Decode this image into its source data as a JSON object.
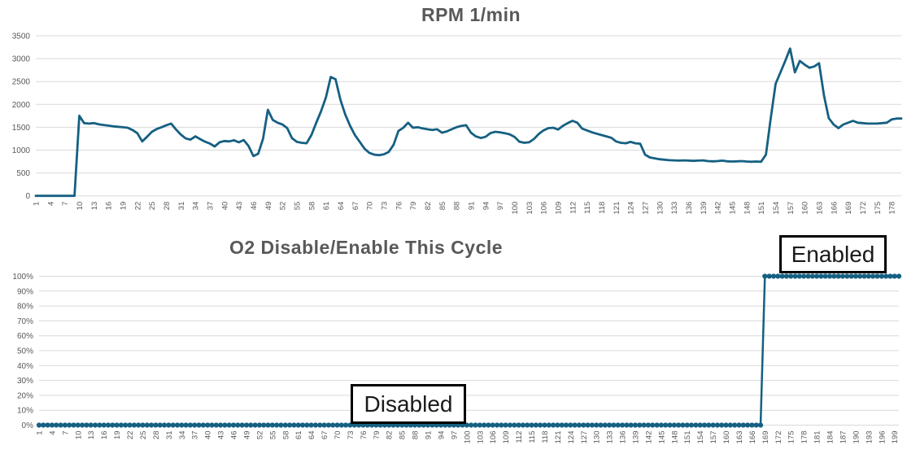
{
  "colors": {
    "series_line": "#156082",
    "gridline": "#D9D9D9",
    "axis_text": "#595959",
    "title_text": "#595959",
    "annotation_border": "#000000",
    "annotation_bg": "#FFFFFF",
    "annotation_text": "#1A1A1A"
  },
  "chart_data": [
    {
      "type": "line",
      "title": "RPM 1/min",
      "xlabel": "",
      "ylabel": "",
      "ylim": [
        0,
        3500
      ],
      "grid": true,
      "legend": "none",
      "markers": false,
      "x_start": 1,
      "x_count": 180,
      "ytick_values": [
        0,
        500,
        1000,
        1500,
        2000,
        2500,
        3000,
        3500
      ],
      "ytick_labels": [
        "0",
        "500",
        "1000",
        "1500",
        "2000",
        "2500",
        "3000",
        "3500"
      ],
      "xtick_labels": [
        "1",
        "4",
        "7",
        "10",
        "13",
        "16",
        "19",
        "22",
        "25",
        "28",
        "31",
        "34",
        "37",
        "40",
        "43",
        "46",
        "49",
        "52",
        "55",
        "58",
        "61",
        "64",
        "67",
        "70",
        "73",
        "76",
        "79",
        "82",
        "85",
        "88",
        "91",
        "94",
        "97",
        "100",
        "103",
        "106",
        "109",
        "112",
        "115",
        "118",
        "121",
        "124",
        "127",
        "130",
        "133",
        "136",
        "139",
        "142",
        "145",
        "148",
        "151",
        "154",
        "157",
        "160",
        "163",
        "166",
        "169",
        "172",
        "175",
        "178"
      ],
      "values": [
        0,
        0,
        0,
        0,
        0,
        0,
        0,
        0,
        0,
        1750,
        1590,
        1580,
        1590,
        1565,
        1550,
        1535,
        1520,
        1510,
        1500,
        1490,
        1440,
        1370,
        1190,
        1290,
        1400,
        1460,
        1500,
        1545,
        1580,
        1450,
        1340,
        1255,
        1230,
        1300,
        1240,
        1185,
        1145,
        1080,
        1170,
        1200,
        1190,
        1215,
        1170,
        1220,
        1090,
        870,
        920,
        1250,
        1880,
        1660,
        1600,
        1560,
        1480,
        1260,
        1180,
        1160,
        1150,
        1330,
        1600,
        1850,
        2150,
        2600,
        2550,
        2100,
        1780,
        1530,
        1330,
        1180,
        1030,
        940,
        900,
        890,
        910,
        960,
        1120,
        1420,
        1490,
        1600,
        1490,
        1500,
        1475,
        1455,
        1440,
        1455,
        1380,
        1410,
        1455,
        1500,
        1530,
        1545,
        1380,
        1300,
        1265,
        1290,
        1370,
        1400,
        1390,
        1370,
        1345,
        1290,
        1185,
        1160,
        1170,
        1240,
        1350,
        1430,
        1480,
        1490,
        1450,
        1530,
        1590,
        1640,
        1600,
        1470,
        1430,
        1390,
        1360,
        1330,
        1300,
        1270,
        1190,
        1160,
        1150,
        1180,
        1150,
        1140,
        900,
        840,
        820,
        800,
        790,
        780,
        775,
        770,
        775,
        770,
        765,
        770,
        775,
        760,
        755,
        760,
        770,
        755,
        750,
        755,
        760,
        750,
        745,
        750,
        745,
        900,
        1700,
        2450,
        2700,
        2950,
        3220,
        2700,
        2950,
        2870,
        2800,
        2830,
        2900,
        2200,
        1700,
        1560,
        1480,
        1560,
        1600,
        1640,
        1600,
        1590,
        1580,
        1580,
        1580,
        1590,
        1600,
        1670,
        1690,
        1690
      ]
    },
    {
      "type": "line",
      "title": "O2 Disable/Enable This Cycle",
      "xlabel": "",
      "ylabel": "",
      "ylim": [
        0,
        100
      ],
      "grid": true,
      "legend": "none",
      "markers": true,
      "x_start": 1,
      "x_count": 200,
      "ytick_values": [
        0,
        10,
        20,
        30,
        40,
        50,
        60,
        70,
        80,
        90,
        100
      ],
      "ytick_labels": [
        "0%",
        "10%",
        "20%",
        "30%",
        "40%",
        "50%",
        "60%",
        "70%",
        "80%",
        "90%",
        "100%"
      ],
      "xtick_labels": [
        "1",
        "4",
        "7",
        "10",
        "13",
        "16",
        "19",
        "22",
        "25",
        "28",
        "31",
        "34",
        "37",
        "40",
        "43",
        "46",
        "49",
        "52",
        "55",
        "58",
        "61",
        "64",
        "67",
        "70",
        "73",
        "76",
        "79",
        "82",
        "85",
        "88",
        "91",
        "94",
        "97",
        "100",
        "103",
        "106",
        "109",
        "112",
        "115",
        "118",
        "121",
        "124",
        "127",
        "130",
        "133",
        "136",
        "139",
        "142",
        "145",
        "148",
        "151",
        "154",
        "157",
        "160",
        "163",
        "166",
        "169",
        "172",
        "175",
        "178",
        "181",
        "184",
        "187",
        "190",
        "193",
        "196",
        "199"
      ],
      "values": [
        0,
        0,
        0,
        0,
        0,
        0,
        0,
        0,
        0,
        0,
        0,
        0,
        0,
        0,
        0,
        0,
        0,
        0,
        0,
        0,
        0,
        0,
        0,
        0,
        0,
        0,
        0,
        0,
        0,
        0,
        0,
        0,
        0,
        0,
        0,
        0,
        0,
        0,
        0,
        0,
        0,
        0,
        0,
        0,
        0,
        0,
        0,
        0,
        0,
        0,
        0,
        0,
        0,
        0,
        0,
        0,
        0,
        0,
        0,
        0,
        0,
        0,
        0,
        0,
        0,
        0,
        0,
        0,
        0,
        0,
        0,
        0,
        0,
        0,
        0,
        0,
        0,
        0,
        0,
        0,
        0,
        0,
        0,
        0,
        0,
        0,
        0,
        0,
        0,
        0,
        0,
        0,
        0,
        0,
        0,
        0,
        0,
        0,
        0,
        0,
        0,
        0,
        0,
        0,
        0,
        0,
        0,
        0,
        0,
        0,
        0,
        0,
        0,
        0,
        0,
        0,
        0,
        0,
        0,
        0,
        0,
        0,
        0,
        0,
        0,
        0,
        0,
        0,
        0,
        0,
        0,
        0,
        0,
        0,
        0,
        0,
        0,
        0,
        0,
        0,
        0,
        0,
        0,
        0,
        0,
        0,
        0,
        0,
        0,
        0,
        0,
        0,
        0,
        0,
        0,
        0,
        0,
        0,
        0,
        0,
        0,
        0,
        0,
        0,
        0,
        0,
        0,
        0,
        100,
        100,
        100,
        100,
        100,
        100,
        100,
        100,
        100,
        100,
        100,
        100,
        100,
        100,
        100,
        100,
        100,
        100,
        100,
        100,
        100,
        100,
        100,
        100,
        100,
        100,
        100,
        100,
        100,
        100,
        100,
        100
      ],
      "annotations": [
        {
          "text": "Disabled"
        },
        {
          "text": "Enabled"
        }
      ]
    }
  ]
}
